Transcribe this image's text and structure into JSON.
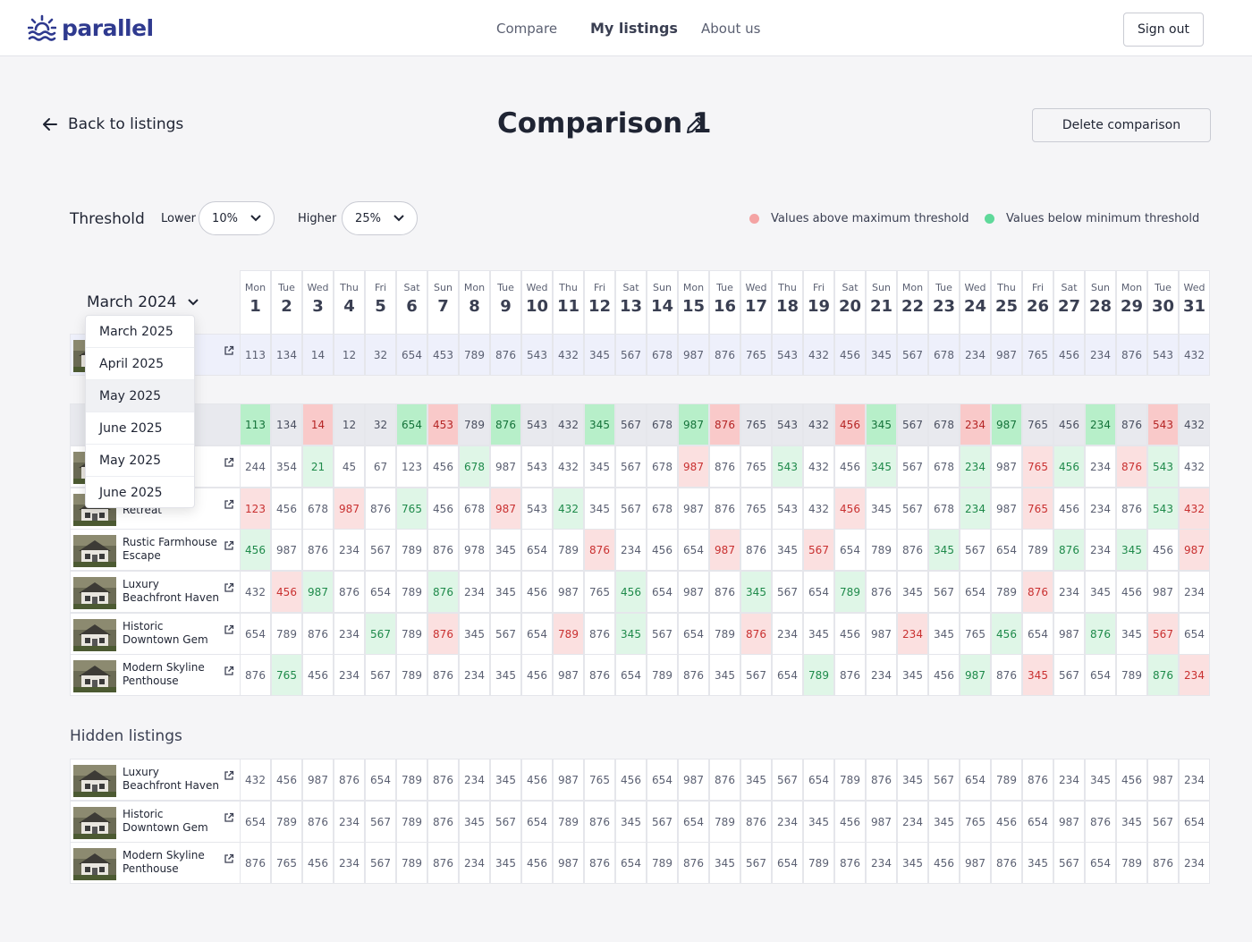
{
  "app": {
    "brand": "parallel",
    "accent": "#2f3a8f"
  },
  "nav": {
    "links": [
      "Compare",
      "My listings",
      "About us"
    ],
    "active": "My listings",
    "sign_out": "Sign out"
  },
  "header": {
    "back_label": "Back to listings",
    "title": "Comparison 1",
    "delete_label": "Delete comparison"
  },
  "threshold": {
    "label": "Threshold",
    "lower_label": "Lower",
    "lower_value": "10%",
    "higher_label": "Higher",
    "higher_value": "25%",
    "legend_above": "Values above maximum threshold",
    "legend_below": "Values below minimum threshold",
    "color_above": "#f4a3a3",
    "color_below": "#5fd99a"
  },
  "calendar": {
    "month": "March 2024",
    "weekdays": [
      "Mon",
      "Tue",
      "Wed",
      "Thu",
      "Fri",
      "Sat",
      "Sun",
      "Mon",
      "Tue",
      "Wed",
      "Thu",
      "Fri",
      "Sat",
      "Sun",
      "Mon",
      "Tue",
      "Wed",
      "Thu",
      "Fri",
      "Sat",
      "Sun",
      "Mon",
      "Tue",
      "Wed",
      "Thu",
      "Fri",
      "Sat",
      "Sun",
      "Mon",
      "Tue",
      "Wed"
    ],
    "days": [
      "1",
      "2",
      "3",
      "4",
      "5",
      "6",
      "7",
      "8",
      "9",
      "10",
      "11",
      "12",
      "13",
      "14",
      "15",
      "16",
      "17",
      "18",
      "19",
      "20",
      "21",
      "22",
      "23",
      "24",
      "25",
      "26",
      "27",
      "28",
      "29",
      "30",
      "31"
    ]
  },
  "month_dropdown": {
    "options": [
      "March 2025",
      "April 2025",
      "May 2025",
      "June 2025",
      "May 2025",
      "June 2025"
    ],
    "highlighted_index": 2
  },
  "my_listing": {
    "name_fragment": "n",
    "values": [
      "113",
      "134",
      "14",
      "12",
      "32",
      "654",
      "453",
      "789",
      "876",
      "543",
      "432",
      "345",
      "567",
      "678",
      "987",
      "876",
      "765",
      "543",
      "432",
      "456",
      "345",
      "567",
      "678",
      "234",
      "987",
      "765",
      "456",
      "234",
      "876",
      "543",
      "432"
    ],
    "flags": [
      "",
      "",
      "",
      "",
      "",
      "",
      "",
      "",
      "",
      "",
      "",
      "",
      "",
      "",
      "",
      "",
      "",
      "",
      "",
      "",
      "",
      "",
      "",
      "",
      "",
      "",
      "",
      "",
      "",
      "",
      ""
    ]
  },
  "competitors_avg": {
    "label_fragment": "etitors",
    "values": [
      "113",
      "134",
      "14",
      "12",
      "32",
      "654",
      "453",
      "789",
      "876",
      "543",
      "432",
      "345",
      "567",
      "678",
      "987",
      "876",
      "765",
      "543",
      "432",
      "456",
      "345",
      "567",
      "678",
      "234",
      "987",
      "765",
      "456",
      "234",
      "876",
      "543",
      "432"
    ],
    "flags": [
      "lo",
      "",
      "hi",
      "",
      "",
      "lo",
      "hi",
      "",
      "lo",
      "",
      "",
      "lo",
      "",
      "",
      "lo",
      "hi",
      "",
      "",
      "",
      "hi",
      "lo",
      "",
      "",
      "hi",
      "lo",
      "",
      "",
      "lo",
      "",
      "hi",
      ""
    ]
  },
  "listings": [
    {
      "name": "n",
      "values": [
        "244",
        "354",
        "21",
        "45",
        "67",
        "123",
        "456",
        "678",
        "987",
        "543",
        "432",
        "345",
        "567",
        "678",
        "987",
        "876",
        "765",
        "543",
        "432",
        "456",
        "345",
        "567",
        "678",
        "234",
        "987",
        "765",
        "456",
        "234",
        "876",
        "543",
        "432"
      ],
      "flags": [
        "",
        "",
        "lo",
        "",
        "",
        "",
        "",
        "lo",
        "",
        "",
        "",
        "",
        "",
        "",
        "hi",
        "",
        "",
        "lo",
        "",
        "",
        "lo",
        "",
        "",
        "lo",
        "",
        "hi",
        "lo",
        "",
        "hi",
        "lo",
        ""
      ]
    },
    {
      "name": "Retreat",
      "values": [
        "123",
        "456",
        "678",
        "987",
        "876",
        "765",
        "456",
        "678",
        "987",
        "543",
        "432",
        "345",
        "567",
        "678",
        "987",
        "876",
        "765",
        "543",
        "432",
        "456",
        "345",
        "567",
        "678",
        "234",
        "987",
        "765",
        "456",
        "234",
        "876",
        "543",
        "432"
      ],
      "flags": [
        "hi",
        "",
        "",
        "hi",
        "",
        "lo",
        "",
        "",
        "hi",
        "",
        "lo",
        "",
        "",
        "",
        "",
        "",
        "",
        "",
        "",
        "hi",
        "",
        "",
        "",
        "lo",
        "",
        "hi",
        "",
        "",
        "",
        "lo",
        "hi"
      ]
    },
    {
      "name": "Rustic Farmhouse Escape",
      "values": [
        "456",
        "987",
        "876",
        "234",
        "567",
        "789",
        "876",
        "978",
        "345",
        "654",
        "789",
        "876",
        "234",
        "456",
        "654",
        "987",
        "876",
        "345",
        "567",
        "654",
        "789",
        "876",
        "345",
        "567",
        "654",
        "789",
        "876",
        "234",
        "345",
        "456",
        "987"
      ],
      "flags": [
        "lo",
        "",
        "",
        "",
        "",
        "",
        "",
        "",
        "",
        "",
        "",
        "hi",
        "",
        "",
        "",
        "hi",
        "",
        "",
        "hi",
        "",
        "",
        "",
        "lo",
        "",
        "",
        "",
        "lo",
        "",
        "lo",
        "",
        "hi"
      ]
    },
    {
      "name": "Luxury Beachfront Haven",
      "values": [
        "432",
        "456",
        "987",
        "876",
        "654",
        "789",
        "876",
        "234",
        "345",
        "456",
        "987",
        "765",
        "456",
        "654",
        "987",
        "876",
        "345",
        "567",
        "654",
        "789",
        "876",
        "345",
        "567",
        "654",
        "789",
        "876",
        "234",
        "345",
        "456",
        "987",
        "234"
      ],
      "flags": [
        "",
        "hi",
        "lo",
        "",
        "",
        "",
        "lo",
        "",
        "",
        "",
        "",
        "",
        "lo",
        "",
        "",
        "",
        "lo",
        "",
        "",
        "lo",
        "",
        "",
        "",
        "",
        "",
        "hi",
        "",
        "",
        "",
        "",
        ""
      ]
    },
    {
      "name": "Historic Downtown Gem",
      "values": [
        "654",
        "789",
        "876",
        "234",
        "567",
        "789",
        "876",
        "345",
        "567",
        "654",
        "789",
        "876",
        "345",
        "567",
        "654",
        "789",
        "876",
        "234",
        "345",
        "456",
        "987",
        "234",
        "345",
        "765",
        "456",
        "654",
        "987",
        "876",
        "345",
        "567",
        "654"
      ],
      "flags": [
        "",
        "",
        "",
        "",
        "lo",
        "",
        "hi",
        "",
        "",
        "",
        "hi",
        "",
        "lo",
        "",
        "",
        "",
        "hi",
        "",
        "",
        "",
        "",
        "hi",
        "",
        "",
        "lo",
        "",
        "",
        "lo",
        "",
        "hi",
        ""
      ]
    },
    {
      "name": "Modern Skyline Penthouse",
      "values": [
        "876",
        "765",
        "456",
        "234",
        "567",
        "789",
        "876",
        "234",
        "345",
        "456",
        "987",
        "876",
        "654",
        "789",
        "876",
        "345",
        "567",
        "654",
        "789",
        "876",
        "234",
        "345",
        "456",
        "987",
        "876",
        "345",
        "567",
        "654",
        "789",
        "876",
        "234"
      ],
      "flags": [
        "",
        "lo",
        "",
        "",
        "",
        "",
        "",
        "",
        "",
        "",
        "",
        "",
        "",
        "",
        "",
        "",
        "",
        "",
        "lo",
        "",
        "",
        "",
        "",
        "lo",
        "",
        "hi",
        "",
        "",
        "",
        "lo",
        "hi"
      ]
    }
  ],
  "hidden_section": {
    "title": "Hidden listings",
    "listings": [
      {
        "name": "Luxury Beachfront Haven",
        "values": [
          "432",
          "456",
          "987",
          "876",
          "654",
          "789",
          "876",
          "234",
          "345",
          "456",
          "987",
          "765",
          "456",
          "654",
          "987",
          "876",
          "345",
          "567",
          "654",
          "789",
          "876",
          "345",
          "567",
          "654",
          "789",
          "876",
          "234",
          "345",
          "456",
          "987",
          "234"
        ]
      },
      {
        "name": "Historic Downtown Gem",
        "values": [
          "654",
          "789",
          "876",
          "234",
          "567",
          "789",
          "876",
          "345",
          "567",
          "654",
          "789",
          "876",
          "345",
          "567",
          "654",
          "789",
          "876",
          "234",
          "345",
          "456",
          "987",
          "234",
          "345",
          "765",
          "456",
          "654",
          "987",
          "876",
          "345",
          "567",
          "654"
        ]
      },
      {
        "name": "Modern Skyline Penthouse",
        "values": [
          "876",
          "765",
          "456",
          "234",
          "567",
          "789",
          "876",
          "234",
          "345",
          "456",
          "987",
          "876",
          "654",
          "789",
          "876",
          "345",
          "567",
          "654",
          "789",
          "876",
          "234",
          "345",
          "456",
          "987",
          "876",
          "345",
          "567",
          "654",
          "789",
          "876",
          "234"
        ]
      }
    ]
  }
}
